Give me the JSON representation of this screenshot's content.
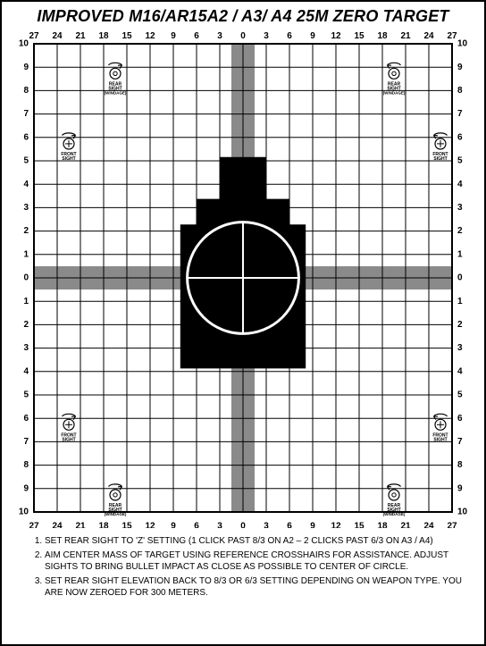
{
  "title": "IMPROVED M16/AR15A2 / A3/ A4 25M ZERO TARGET",
  "grid": {
    "cols": 18,
    "rows": 20,
    "x_labels_top": [
      "27",
      "24",
      "21",
      "18",
      "15",
      "12",
      "9",
      "6",
      "3",
      "0",
      "3",
      "6",
      "9",
      "12",
      "15",
      "18",
      "21",
      "24",
      "27"
    ],
    "x_labels_bottom": [
      "27",
      "24",
      "21",
      "18",
      "15",
      "12",
      "9",
      "6",
      "3",
      "0",
      "3",
      "6",
      "9",
      "12",
      "15",
      "18",
      "21",
      "24",
      "27"
    ],
    "y_labels_left": [
      "10",
      "9",
      "8",
      "7",
      "6",
      "5",
      "4",
      "3",
      "2",
      "1",
      "0",
      "1",
      "2",
      "3",
      "4",
      "5",
      "6",
      "7",
      "8",
      "9",
      "10"
    ],
    "y_labels_right": [
      "10",
      "9",
      "8",
      "7",
      "6",
      "5",
      "4",
      "3",
      "2",
      "1",
      "0",
      "1",
      "2",
      "3",
      "4",
      "5",
      "6",
      "7",
      "8",
      "9",
      "10"
    ],
    "line_color": "#000000",
    "background": "#ffffff",
    "gray_band_color": "#8a8a8a",
    "silhouette_color": "#000000",
    "circle_stroke": "#ffffff",
    "label_fontsize": 10
  },
  "sight_icons": {
    "rear": {
      "label1": "REAR",
      "label2": "SIGHT",
      "label3": "(WINDAGE)"
    },
    "front": {
      "label1": "FRONT",
      "label2": "SIGHT"
    },
    "positions": {
      "rear_tl": {
        "col": 3,
        "row": 1
      },
      "rear_tr": {
        "col": 15,
        "row": 1
      },
      "front_tl": {
        "col": 1,
        "row": 4
      },
      "front_tr": {
        "col": 17,
        "row": 4
      },
      "front_bl": {
        "col": 1,
        "row": 16
      },
      "front_br": {
        "col": 17,
        "row": 16
      },
      "rear_bl": {
        "col": 3,
        "row": 19
      },
      "rear_br": {
        "col": 15,
        "row": 19
      }
    }
  },
  "instructions": [
    "SET REAR SIGHT TO 'Z' SETTING (1 CLICK PAST 8/3 ON A2 – 2 CLICKS PAST 6/3 ON A3 / A4)",
    "AIM CENTER MASS OF TARGET USING REFERENCE CROSSHAIRS FOR ASSISTANCE. ADJUST SIGHTS TO BRING BULLET IMPACT AS CLOSE AS POSSIBLE TO CENTER OF CIRCLE.",
    "SET REAR SIGHT ELEVATION BACK TO 8/3 OR 6/3 SETTING DEPENDING ON WEAPON TYPE. YOU ARE NOW ZEROED FOR 300 METERS."
  ]
}
